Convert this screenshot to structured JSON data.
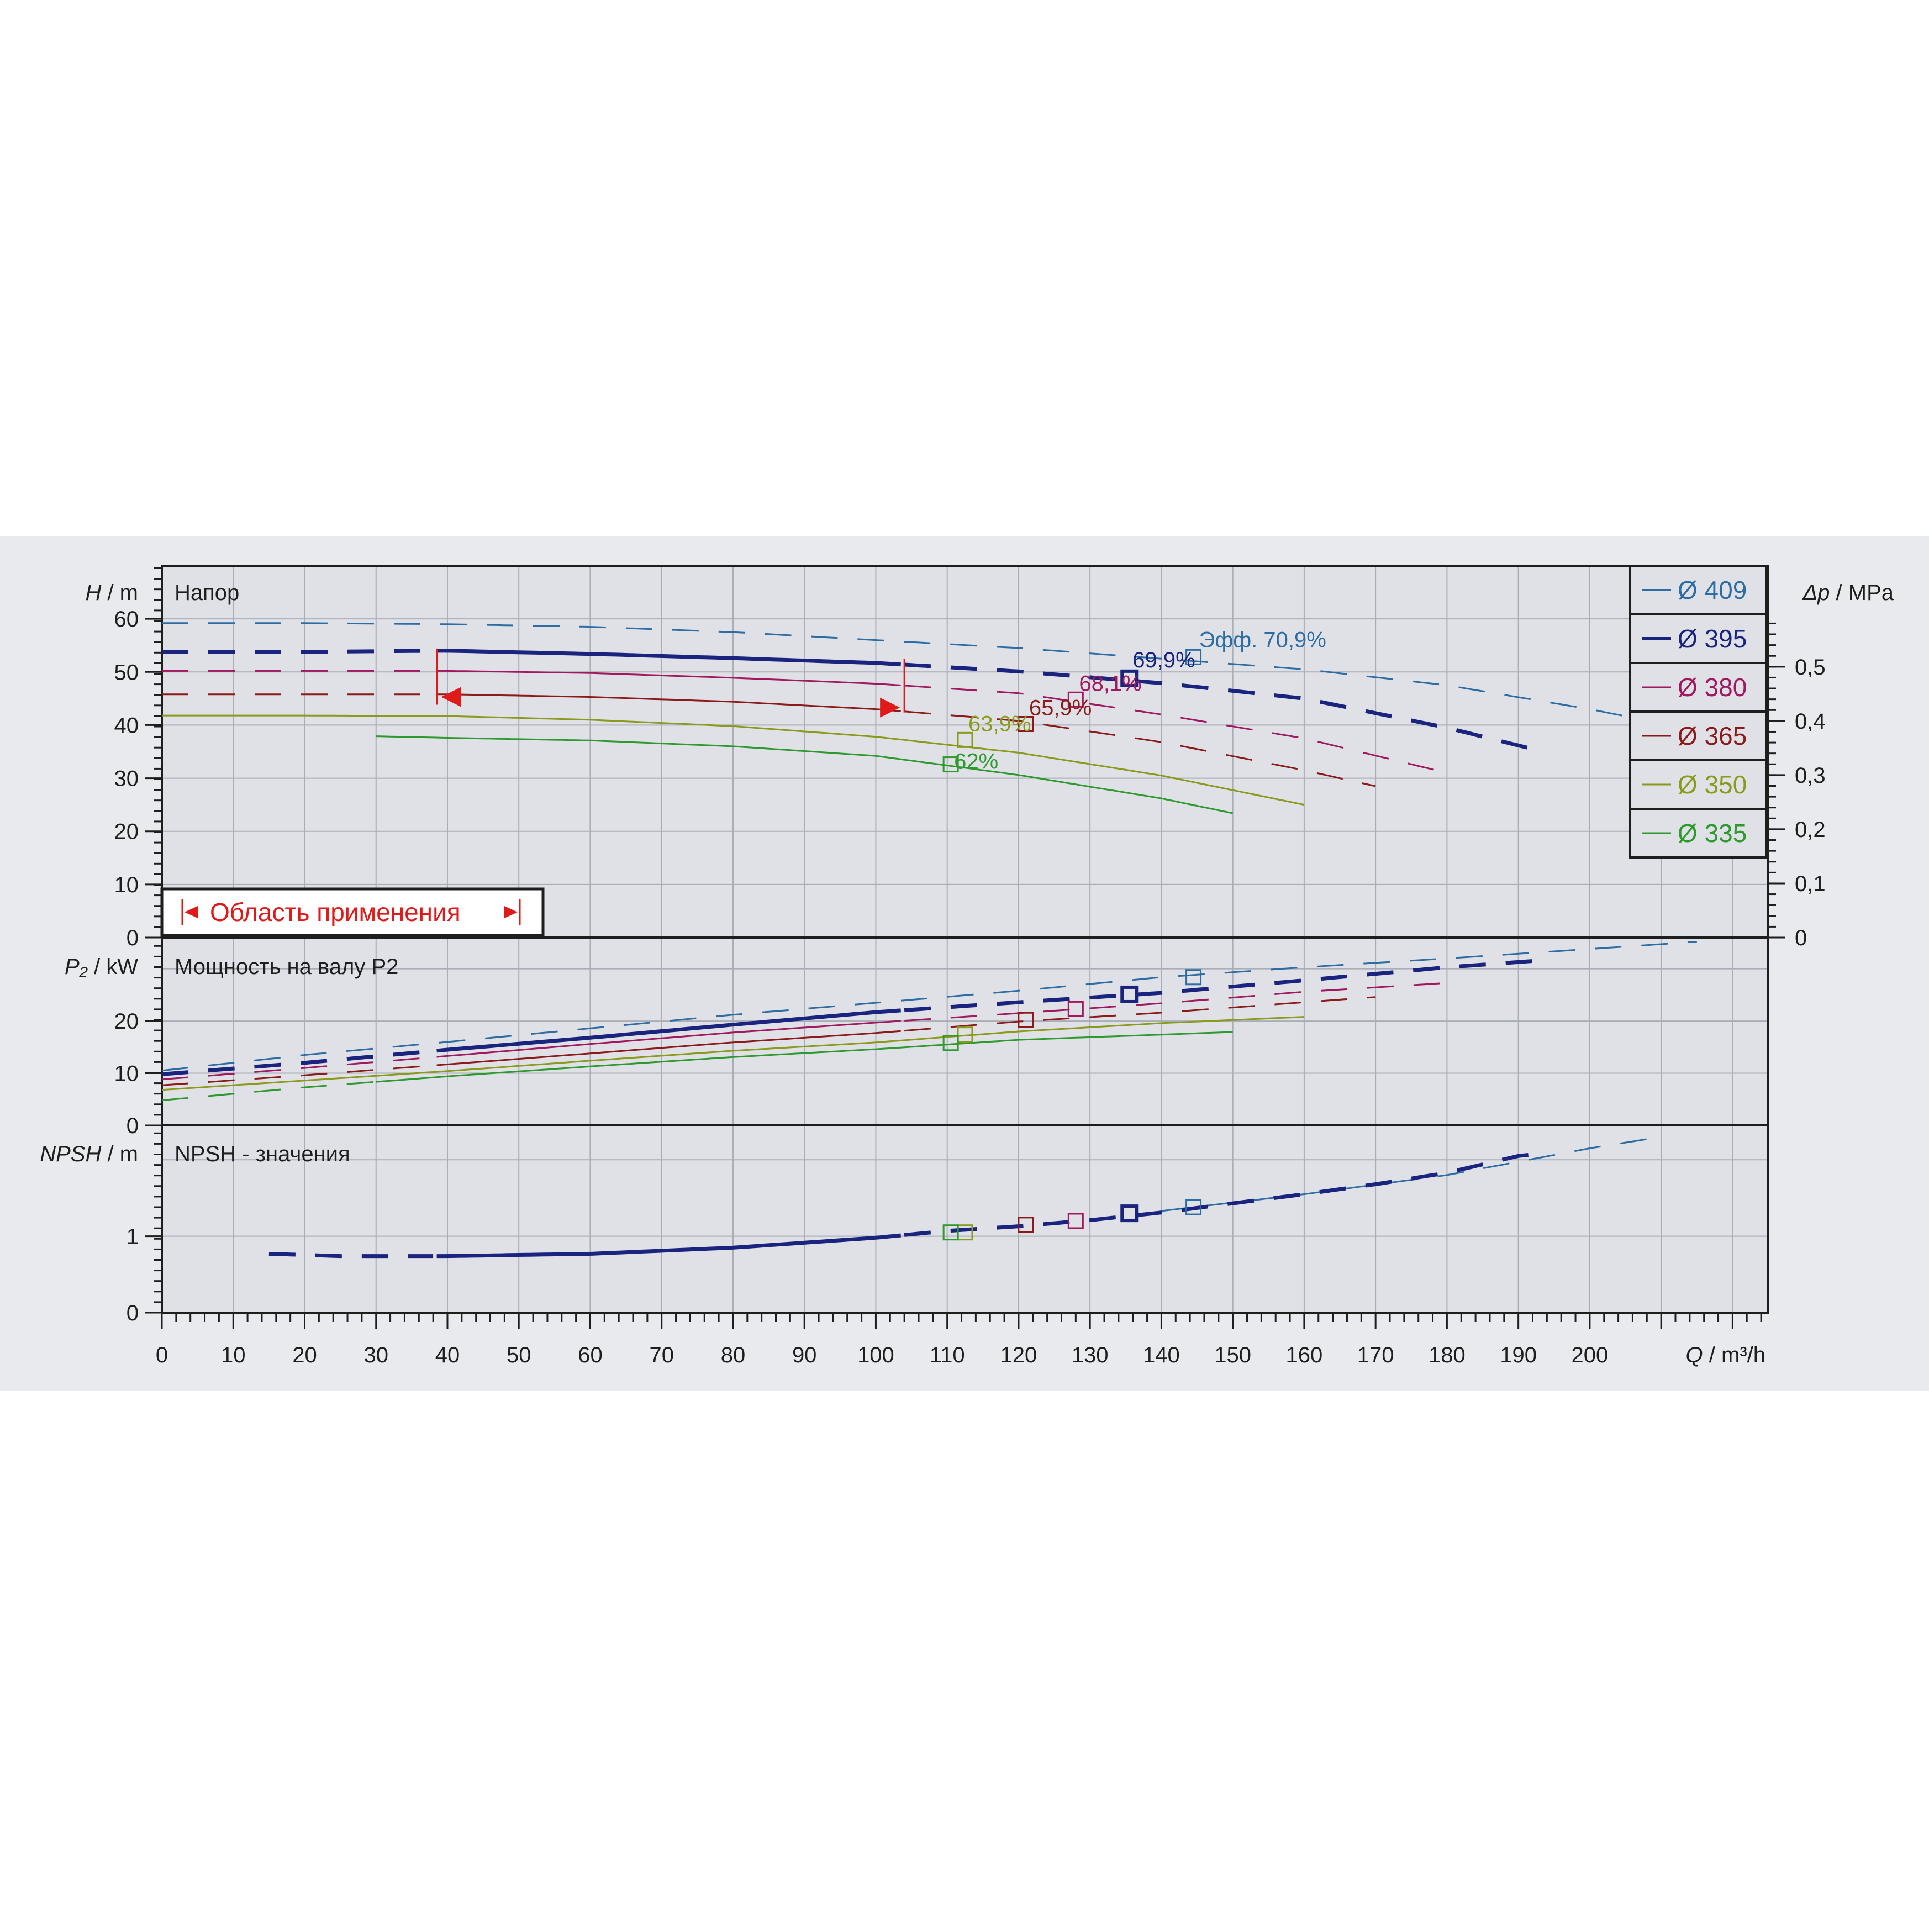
{
  "chart_data": {
    "type": "line",
    "x_axis": {
      "label_symbol": "Q",
      "label_unit": "/ m³/h",
      "ticks": [
        "0",
        "10",
        "20",
        "30",
        "40",
        "50",
        "60",
        "70",
        "80",
        "90",
        "100",
        "110",
        "120",
        "130",
        "140",
        "150",
        "160",
        "170",
        "180",
        "190",
        "200"
      ],
      "range": [
        0,
        225
      ]
    },
    "legend": {
      "placement": "top-right",
      "entries": [
        {
          "label": "Ø 409",
          "color": "#2e6da4"
        },
        {
          "label": "Ø 395",
          "color": "#1a237e"
        },
        {
          "label": "Ø 380",
          "color": "#a0195f"
        },
        {
          "label": "Ø 365",
          "color": "#8b1a1a"
        },
        {
          "label": "Ø 350",
          "color": "#8a9a1a"
        },
        {
          "label": "Ø 335",
          "color": "#2e9a2e"
        }
      ]
    },
    "panels": {
      "head": {
        "ylabel_symbol": "H",
        "ylabel_unit": "/ m",
        "title": "Напор",
        "yticks": [
          "0",
          "10",
          "20",
          "30",
          "40",
          "50",
          "60"
        ],
        "ylim": [
          0,
          70
        ],
        "right_label_symbol": "Δp",
        "right_label_unit": "/ MPa",
        "right_ticks": [
          "0",
          "0,1",
          "0,2",
          "0,3",
          "0,4",
          "0,5"
        ],
        "right_ylim": [
          0,
          0.6865
        ],
        "application_range_label": "Область применения",
        "application_range_q": [
          38.5,
          104
        ],
        "application_range_h": [
          54,
          45.5
        ],
        "efficiency_prefix": "Эфф.",
        "efficiency_labels": [
          "70,9%",
          "69,9%",
          "68,1%",
          "65,9%",
          "63,9%",
          "62%"
        ],
        "series": [
          {
            "name": "Ø 409",
            "color": "#2e6da4",
            "dash_to": 225,
            "solid_range": null,
            "x": [
              0,
              20,
              40,
              60,
              80,
              100,
              120,
              140,
              160,
              180,
              200,
              215
            ],
            "y": [
              59.2,
              59.2,
              59.0,
              58.5,
              57.5,
              56.0,
              54.5,
              52.5,
              50.5,
              47.5,
              43.0,
              39.0
            ],
            "bep": [
              144.5,
              52.8
            ],
            "eff": "70,9%"
          },
          {
            "name": "Ø 395",
            "color": "#1a237e",
            "solid_range": [
              38.5,
              104
            ],
            "bold": true,
            "x": [
              0,
              20,
              40,
              60,
              80,
              100,
              120,
              140,
              160,
              180,
              192
            ],
            "y": [
              53.8,
              53.8,
              54.0,
              53.4,
              52.6,
              51.7,
              50.1,
              47.9,
              45.0,
              39.5,
              35.5
            ],
            "bep": [
              135.5,
              48.8
            ],
            "eff": "69,9%"
          },
          {
            "name": "Ø 380",
            "color": "#a0195f",
            "solid_range": [
              38.5,
              104
            ],
            "x": [
              0,
              20,
              40,
              60,
              80,
              100,
              120,
              140,
              160,
              180
            ],
            "y": [
              50.2,
              50.2,
              50.2,
              49.8,
              48.9,
              47.8,
              46.0,
              42.0,
              37.5,
              31.0
            ],
            "bep": [
              128,
              44.8
            ],
            "eff": "68,1%"
          },
          {
            "name": "Ø 365",
            "color": "#8b1a1a",
            "solid_range": [
              38.5,
              104
            ],
            "x": [
              0,
              20,
              40,
              60,
              80,
              100,
              120,
              140,
              160,
              170
            ],
            "y": [
              45.8,
              45.8,
              45.8,
              45.3,
              44.4,
              43.0,
              40.8,
              36.8,
              31.5,
              28.5
            ],
            "bep": [
              121,
              40.2
            ],
            "eff": "65,9%"
          },
          {
            "name": "Ø 350",
            "color": "#8a9a1a",
            "solid_range": [
              0,
              160
            ],
            "x": [
              0,
              20,
              40,
              60,
              80,
              100,
              120,
              140,
              160
            ],
            "y": [
              41.8,
              41.8,
              41.7,
              41.0,
              39.8,
              37.8,
              34.8,
              30.5,
              25.0
            ],
            "bep": [
              112.5,
              37.2
            ],
            "eff": "63,9%"
          },
          {
            "name": "Ø 335",
            "color": "#2e9a2e",
            "solid_range": [
              30,
              150
            ],
            "x": [
              30,
              40,
              60,
              80,
              100,
              120,
              140,
              150
            ],
            "y": [
              37.9,
              37.6,
              37.1,
              36.0,
              34.2,
              30.6,
              26.2,
              23.4
            ],
            "bep": [
              110.5,
              32.6
            ],
            "eff": "62%"
          }
        ]
      },
      "power": {
        "ylabel_symbol": "P₂",
        "ylabel_unit": "/ kW",
        "title": "Мощность на валу P2",
        "yticks": [
          "0",
          "10",
          "20"
        ],
        "ylim": [
          0,
          36
        ],
        "series": [
          {
            "name": "Ø 409",
            "color": "#2e6da4",
            "x": [
              0,
              20,
              40,
              60,
              80,
              100,
              120,
              140,
              160,
              180,
              200,
              215
            ],
            "y": [
              10.5,
              13.5,
              16.0,
              18.6,
              21.2,
              23.5,
              25.8,
              28.4,
              30.3,
              32.0,
              33.8,
              35.2
            ],
            "bep": [
              144.5,
              28.4
            ]
          },
          {
            "name": "Ø 395",
            "color": "#1a237e",
            "bold": true,
            "x": [
              0,
              20,
              40,
              60,
              80,
              100,
              120,
              140,
              160,
              180,
              192
            ],
            "y": [
              9.8,
              12.0,
              14.5,
              16.8,
              19.3,
              21.7,
              23.6,
              25.4,
              27.8,
              30.3,
              31.5
            ],
            "bep": [
              135.5,
              25.1
            ]
          },
          {
            "name": "Ø 380",
            "color": "#a0195f",
            "x": [
              0,
              20,
              40,
              60,
              80,
              100,
              120,
              140,
              160,
              180
            ],
            "y": [
              8.8,
              11.0,
              13.3,
              15.6,
              17.8,
              19.7,
              21.5,
              23.4,
              25.6,
              27.3
            ],
            "bep": [
              128,
              22.3
            ]
          },
          {
            "name": "Ø 365",
            "color": "#8b1a1a",
            "x": [
              0,
              20,
              40,
              60,
              80,
              100,
              120,
              140,
              160,
              170
            ],
            "y": [
              7.7,
              9.6,
              11.7,
              13.8,
              15.9,
              17.7,
              19.9,
              21.6,
              23.6,
              24.6
            ],
            "bep": [
              121,
              20.2
            ]
          },
          {
            "name": "Ø 350",
            "color": "#8a9a1a",
            "x": [
              0,
              20,
              40,
              60,
              80,
              100,
              120,
              140,
              160
            ],
            "y": [
              6.8,
              8.6,
              10.4,
              12.4,
              14.3,
              15.9,
              18.0,
              19.6,
              20.8
            ],
            "bep": [
              112.5,
              17.4
            ]
          },
          {
            "name": "Ø 335",
            "color": "#2e9a2e",
            "x": [
              0,
              20,
              40,
              60,
              80,
              100,
              120,
              140,
              150
            ],
            "y": [
              4.8,
              7.3,
              9.4,
              11.3,
              13.1,
              14.6,
              16.4,
              17.4,
              17.9
            ],
            "bep": [
              110.5,
              15.8
            ]
          }
        ]
      },
      "npsh": {
        "ylabel_symbol": "NPSH",
        "ylabel_unit": "/ m",
        "title": "NPSH - значения",
        "yticks": [
          "0",
          "1"
        ],
        "ylim": [
          0,
          2.45
        ],
        "series": [
          {
            "name": "Ø 409",
            "color": "#2e6da4",
            "x": [
              140,
              160,
              180,
              200,
              210
            ],
            "y": [
              1.33,
              1.55,
              1.8,
              2.15,
              2.3
            ]
          },
          {
            "name": "Ø 395",
            "color": "#1a237e",
            "bold": true,
            "x": [
              15,
              25,
              40,
              60,
              80,
              100,
              110,
              120,
              130,
              140,
              150,
              160,
              170,
              180,
              190,
              192
            ],
            "y": [
              0.77,
              0.74,
              0.74,
              0.77,
              0.85,
              0.98,
              1.07,
              1.13,
              1.21,
              1.31,
              1.43,
              1.55,
              1.68,
              1.83,
              2.05,
              2.07
            ]
          }
        ],
        "bep_points": [
          {
            "q": 144.5,
            "v": 1.38,
            "color": "#2e6da4"
          },
          {
            "q": 135.5,
            "v": 1.3,
            "color": "#1a237e"
          },
          {
            "q": 128,
            "v": 1.2,
            "color": "#a0195f"
          },
          {
            "q": 121,
            "v": 1.15,
            "color": "#8b1a1a"
          },
          {
            "q": 112.5,
            "v": 1.05,
            "color": "#8a9a1a"
          },
          {
            "q": 110.5,
            "v": 1.05,
            "color": "#2e9a2e"
          }
        ]
      }
    }
  }
}
